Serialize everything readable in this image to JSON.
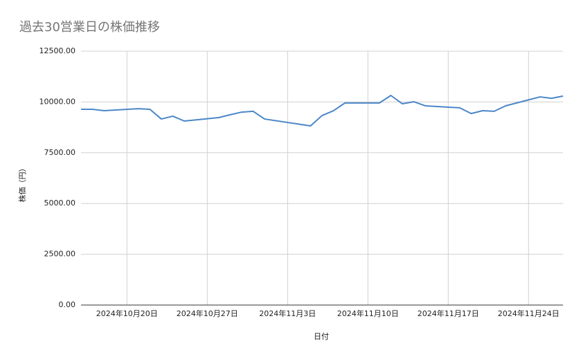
{
  "chart_data": {
    "type": "line",
    "title": "過去30営業日の株価推移",
    "x_label": "日付",
    "y_label": "株価（円）",
    "x": [
      "2024-10-16",
      "2024-10-17",
      "2024-10-18",
      "2024-10-21",
      "2024-10-22",
      "2024-10-23",
      "2024-10-24",
      "2024-10-25",
      "2024-10-28",
      "2024-10-29",
      "2024-10-30",
      "2024-10-31",
      "2024-11-01",
      "2024-11-05",
      "2024-11-06",
      "2024-11-07",
      "2024-11-08",
      "2024-11-11",
      "2024-11-12",
      "2024-11-13",
      "2024-11-14",
      "2024-11-15",
      "2024-11-18",
      "2024-11-19",
      "2024-11-20",
      "2024-11-21",
      "2024-11-22",
      "2024-11-25",
      "2024-11-26",
      "2024-11-27"
    ],
    "values": [
      9640,
      9640,
      9570,
      9670,
      9640,
      9160,
      9300,
      9060,
      9230,
      9370,
      9500,
      9540,
      9160,
      8820,
      9330,
      9570,
      9950,
      9950,
      10320,
      9910,
      10010,
      9810,
      9710,
      9430,
      9570,
      9540,
      9810,
      10250,
      10180,
      10290
    ],
    "color": "#4a86c8",
    "xlim": [
      "2024-10-16",
      "2024-11-27"
    ],
    "xticks": [
      {
        "value": "2024-10-20",
        "label": "2024年10月20日"
      },
      {
        "value": "2024-10-27",
        "label": "2024年10月27日"
      },
      {
        "value": "2024-11-03",
        "label": "2024年11月3日"
      },
      {
        "value": "2024-11-10",
        "label": "2024年11月10日"
      },
      {
        "value": "2024-11-17",
        "label": "2024年11月17日"
      },
      {
        "value": "2024-11-24",
        "label": "2024年11月24日"
      }
    ],
    "ylim": [
      0,
      12500
    ],
    "yticks": [
      {
        "value": 0,
        "label": "0.00"
      },
      {
        "value": 2500,
        "label": "2500.00"
      },
      {
        "value": 5000,
        "label": "5000.00"
      },
      {
        "value": 7500,
        "label": "7500.00"
      },
      {
        "value": 10000,
        "label": "10000.00"
      },
      {
        "value": 12500,
        "label": "12500.00"
      }
    ],
    "grid": true
  }
}
